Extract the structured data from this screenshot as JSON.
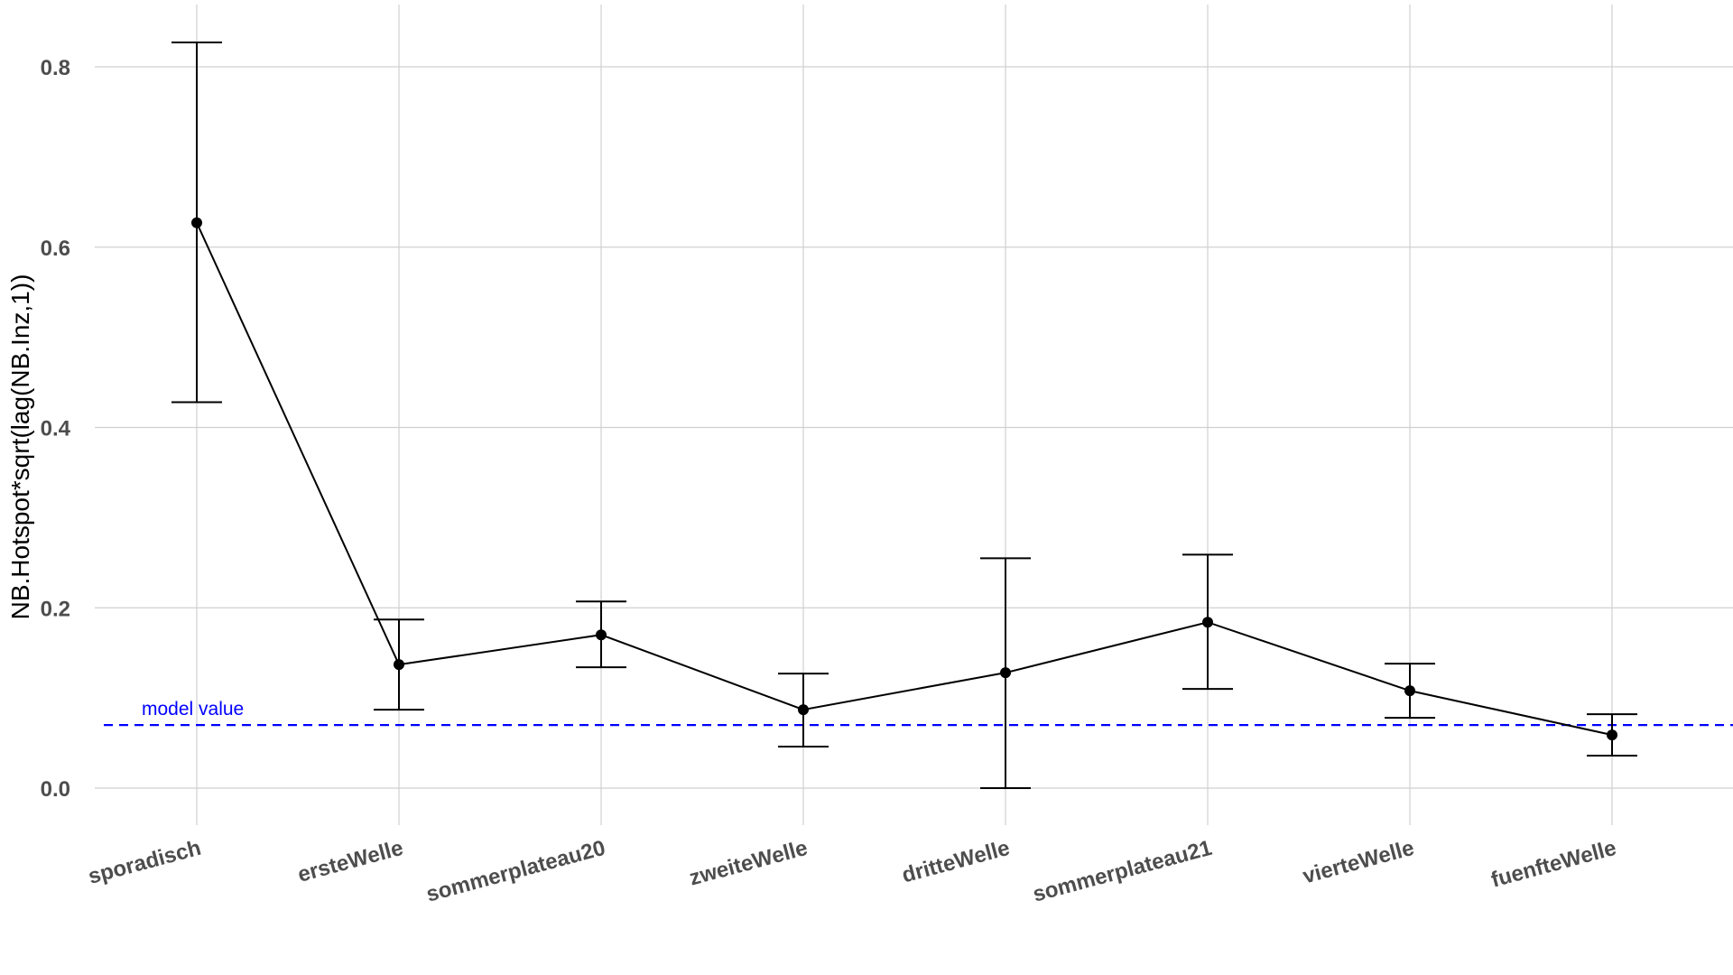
{
  "chart_data": {
    "type": "line",
    "title": "",
    "xlabel": "",
    "ylabel": "NB.Hotspot*sqrt(lag(NB.Inz,1))",
    "categories": [
      "sporadisch",
      "ersteWelle",
      "sommerplateau20",
      "zweiteWelle",
      "dritteWelle",
      "sommerplateau21",
      "vierteWelle",
      "fuenfteWelle"
    ],
    "values": [
      0.627,
      0.137,
      0.17,
      0.087,
      0.128,
      0.184,
      0.108,
      0.059
    ],
    "lower": [
      0.428,
      0.087,
      0.134,
      0.046,
      0.0,
      0.11,
      0.078,
      0.036
    ],
    "upper": [
      0.827,
      0.187,
      0.207,
      0.127,
      0.255,
      0.259,
      0.138,
      0.082
    ],
    "ylim": [
      -0.04,
      0.87
    ],
    "yticks": [
      0.0,
      0.2,
      0.4,
      0.6,
      0.8
    ],
    "ytick_labels": [
      "0.0",
      "0.2",
      "0.4",
      "0.6",
      "0.8"
    ],
    "reference_line": {
      "value": 0.07,
      "label": "model value",
      "color": "#0000ff",
      "style": "dashed"
    },
    "series_color": "#000000",
    "grid": true,
    "legend": "none"
  }
}
